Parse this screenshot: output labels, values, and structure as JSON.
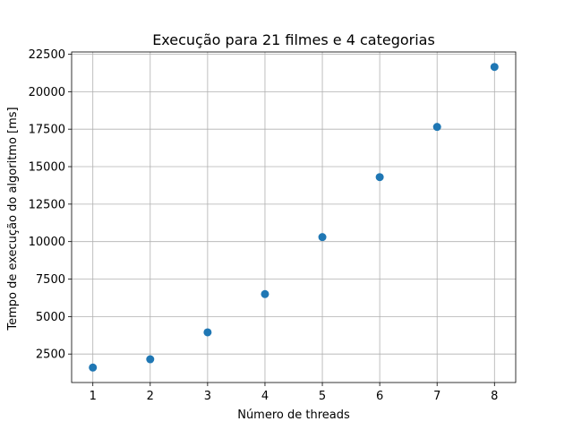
{
  "chart_data": {
    "type": "scatter",
    "title": "Execução para 21 filmes e 4 categorias",
    "xlabel": "Número de threads",
    "ylabel": "Tempo de execução do algoritmo [ms]",
    "x": [
      1,
      2,
      3,
      4,
      5,
      6,
      7,
      8
    ],
    "y": [
      1600,
      2150,
      3950,
      6500,
      10300,
      14300,
      17650,
      21650
    ],
    "xlim": [
      0.63,
      8.37
    ],
    "ylim": [
      600,
      22650
    ],
    "xticks": [
      1,
      2,
      3,
      4,
      5,
      6,
      7,
      8
    ],
    "yticks": [
      2500,
      5000,
      7500,
      10000,
      12500,
      15000,
      17500,
      20000,
      22500
    ],
    "grid": true,
    "marker_color": "#1f77b4"
  }
}
